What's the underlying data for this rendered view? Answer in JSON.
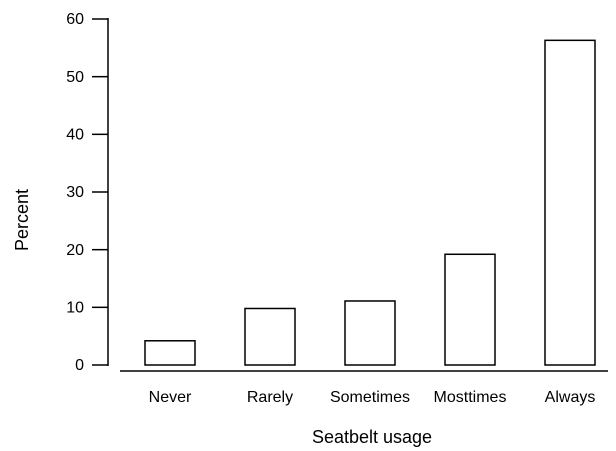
{
  "chart_data": {
    "type": "bar",
    "title": "",
    "xlabel": "Seatbelt usage",
    "ylabel": "Percent",
    "categories": [
      "Never",
      "Rarely",
      "Sometimes",
      "Mosttimes",
      "Always"
    ],
    "values": [
      4.2,
      9.8,
      11.1,
      19.2,
      56.3
    ],
    "ylim": [
      0,
      60
    ],
    "yticks": [
      0,
      10,
      20,
      30,
      40,
      50,
      60
    ],
    "ytick_labels": [
      "0",
      "10",
      "20",
      "30",
      "40",
      "50",
      "60"
    ],
    "grid": false,
    "legend": "none",
    "bar_fill": "#ffffff",
    "bar_stroke": "#000000"
  }
}
